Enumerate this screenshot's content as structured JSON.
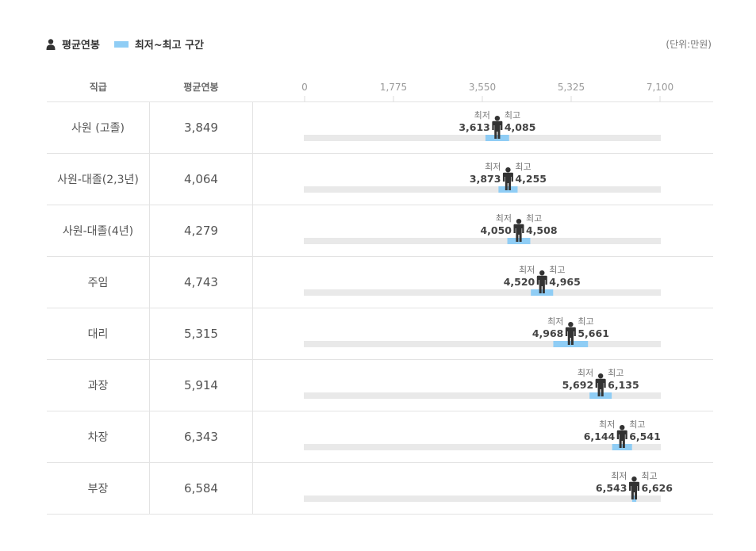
{
  "legend": {
    "avg_label": "평균연봉",
    "range_label": "최저~최고 구간",
    "avg_icon": "person-icon",
    "unit": "(단위:만원)"
  },
  "table": {
    "headers": {
      "rank": "직급",
      "avg": "평균연봉"
    }
  },
  "colors": {
    "range": "#8fcdf5",
    "track": "#e9e9e9",
    "person": "#333333"
  },
  "labels": {
    "min": "최저",
    "max": "최고"
  },
  "chart_data": {
    "type": "range",
    "xlim": [
      0,
      7100
    ],
    "ticks": [
      "0",
      "1,775",
      "3,550",
      "5,325",
      "7,100"
    ],
    "tick_values": [
      0,
      1775,
      3550,
      5325,
      7100
    ],
    "rows": [
      {
        "rank": "사원 (고졸)",
        "avg": 3849,
        "avg_label": "3,849",
        "min": 3613,
        "min_label": "3,613",
        "max": 4085,
        "max_label": "4,085"
      },
      {
        "rank": "사원-대졸(2,3년)",
        "avg": 4064,
        "avg_label": "4,064",
        "min": 3873,
        "min_label": "3,873",
        "max": 4255,
        "max_label": "4,255"
      },
      {
        "rank": "사원-대졸(4년)",
        "avg": 4279,
        "avg_label": "4,279",
        "min": 4050,
        "min_label": "4,050",
        "max": 4508,
        "max_label": "4,508"
      },
      {
        "rank": "주임",
        "avg": 4743,
        "avg_label": "4,743",
        "min": 4520,
        "min_label": "4,520",
        "max": 4965,
        "max_label": "4,965"
      },
      {
        "rank": "대리",
        "avg": 5315,
        "avg_label": "5,315",
        "min": 4968,
        "min_label": "4,968",
        "max": 5661,
        "max_label": "5,661"
      },
      {
        "rank": "과장",
        "avg": 5914,
        "avg_label": "5,914",
        "min": 5692,
        "min_label": "5,692",
        "max": 6135,
        "max_label": "6,135"
      },
      {
        "rank": "차장",
        "avg": 6343,
        "avg_label": "6,343",
        "min": 6144,
        "min_label": "6,144",
        "max": 6541,
        "max_label": "6,541"
      },
      {
        "rank": "부장",
        "avg": 6584,
        "avg_label": "6,584",
        "min": 6543,
        "min_label": "6,543",
        "max": 6626,
        "max_label": "6,626"
      }
    ]
  }
}
